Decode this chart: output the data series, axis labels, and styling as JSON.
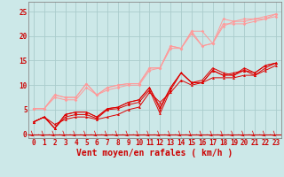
{
  "title": "",
  "xlabel": "Vent moyen/en rafales ( km/h )",
  "ylabel": "",
  "bg_color": "#cce8e8",
  "grid_color": "#aacccc",
  "x_ticks": [
    0,
    1,
    2,
    3,
    4,
    5,
    6,
    7,
    8,
    9,
    10,
    11,
    12,
    13,
    14,
    15,
    16,
    17,
    18,
    19,
    20,
    21,
    22,
    23
  ],
  "y_ticks": [
    0,
    5,
    10,
    15,
    20,
    25
  ],
  "xlim": [
    -0.5,
    23.5
  ],
  "ylim": [
    -0.8,
    27
  ],
  "lines_light": [
    [
      0,
      5.2,
      1,
      5.2,
      2,
      8.0,
      3,
      7.5,
      4,
      7.5,
      5,
      10.3,
      6,
      8.0,
      7,
      9.5,
      8,
      10.0,
      9,
      10.3,
      10,
      10.3,
      11,
      13.5,
      12,
      13.5,
      13,
      18.0,
      14,
      17.5,
      15,
      21.0,
      16,
      18.0,
      17,
      18.5,
      18,
      23.5,
      19,
      23.0,
      20,
      23.0,
      21,
      23.5,
      22,
      23.5,
      23,
      24.5
    ],
    [
      0,
      5.2,
      1,
      5.2,
      2,
      8.0,
      3,
      7.5,
      4,
      7.5,
      5,
      10.3,
      6,
      8.0,
      7,
      9.5,
      8,
      10.0,
      9,
      10.3,
      10,
      10.3,
      11,
      13.5,
      12,
      13.5,
      13,
      18.0,
      14,
      17.5,
      15,
      21.0,
      16,
      21.0,
      17,
      18.5,
      18,
      22.0,
      19,
      23.0,
      20,
      23.5,
      21,
      23.5,
      22,
      24.0,
      23,
      24.5
    ],
    [
      0,
      5.2,
      1,
      5.2,
      2,
      7.5,
      3,
      7.0,
      4,
      7.0,
      5,
      9.5,
      6,
      8.0,
      7,
      9.0,
      8,
      9.5,
      9,
      10.0,
      10,
      10.0,
      11,
      13.0,
      12,
      13.5,
      13,
      17.5,
      14,
      17.5,
      15,
      20.5,
      16,
      18.0,
      17,
      18.5,
      18,
      22.5,
      19,
      22.5,
      20,
      22.5,
      21,
      23.0,
      22,
      23.5,
      23,
      24.0
    ]
  ],
  "lines_dark": [
    [
      0,
      2.5,
      1,
      3.5,
      2,
      1.2,
      3,
      3.5,
      4,
      4.0,
      5,
      4.0,
      6,
      3.2,
      7,
      5.0,
      8,
      5.2,
      9,
      6.0,
      10,
      6.5,
      11,
      9.0,
      12,
      4.2,
      13,
      9.0,
      14,
      12.5,
      15,
      10.5,
      16,
      11.0,
      17,
      13.5,
      18,
      12.5,
      19,
      12.0,
      20,
      13.5,
      21,
      12.5,
      22,
      14.0,
      23,
      14.5
    ],
    [
      0,
      2.5,
      1,
      3.5,
      2,
      1.2,
      3,
      4.0,
      4,
      4.5,
      5,
      4.5,
      6,
      3.5,
      7,
      5.2,
      8,
      5.5,
      9,
      6.5,
      10,
      7.0,
      11,
      9.5,
      12,
      5.0,
      13,
      9.5,
      14,
      12.5,
      15,
      10.5,
      16,
      10.5,
      17,
      13.0,
      18,
      12.0,
      19,
      12.0,
      20,
      13.0,
      21,
      12.0,
      22,
      13.5,
      23,
      14.5
    ],
    [
      0,
      2.5,
      1,
      3.5,
      2,
      1.2,
      3,
      4.0,
      4,
      4.5,
      5,
      4.5,
      6,
      3.5,
      7,
      5.2,
      8,
      5.5,
      9,
      6.5,
      10,
      7.0,
      11,
      9.5,
      12,
      5.5,
      13,
      9.5,
      14,
      12.5,
      15,
      10.5,
      16,
      10.5,
      17,
      13.0,
      18,
      12.0,
      19,
      12.5,
      20,
      13.0,
      21,
      12.5,
      22,
      14.0,
      23,
      14.5
    ],
    [
      0,
      2.5,
      1,
      3.5,
      2,
      2.0,
      3,
      3.0,
      4,
      3.5,
      5,
      3.5,
      6,
      3.0,
      7,
      3.5,
      8,
      4.0,
      9,
      5.0,
      10,
      5.5,
      11,
      8.5,
      12,
      6.5,
      13,
      8.5,
      14,
      11.0,
      15,
      10.0,
      16,
      10.5,
      17,
      11.5,
      18,
      11.5,
      19,
      11.5,
      20,
      12.0,
      21,
      12.0,
      22,
      13.0,
      23,
      14.0
    ]
  ],
  "line_color_light": "#ff9999",
  "line_color_dark": "#dd0000",
  "marker_light": "D",
  "marker_dark": "^",
  "marker_size_light": 1.8,
  "marker_size_dark": 2.0,
  "linewidth": 0.7,
  "tick_label_size": 5.5,
  "axis_label_size": 7,
  "tick_color": "#cc0000"
}
